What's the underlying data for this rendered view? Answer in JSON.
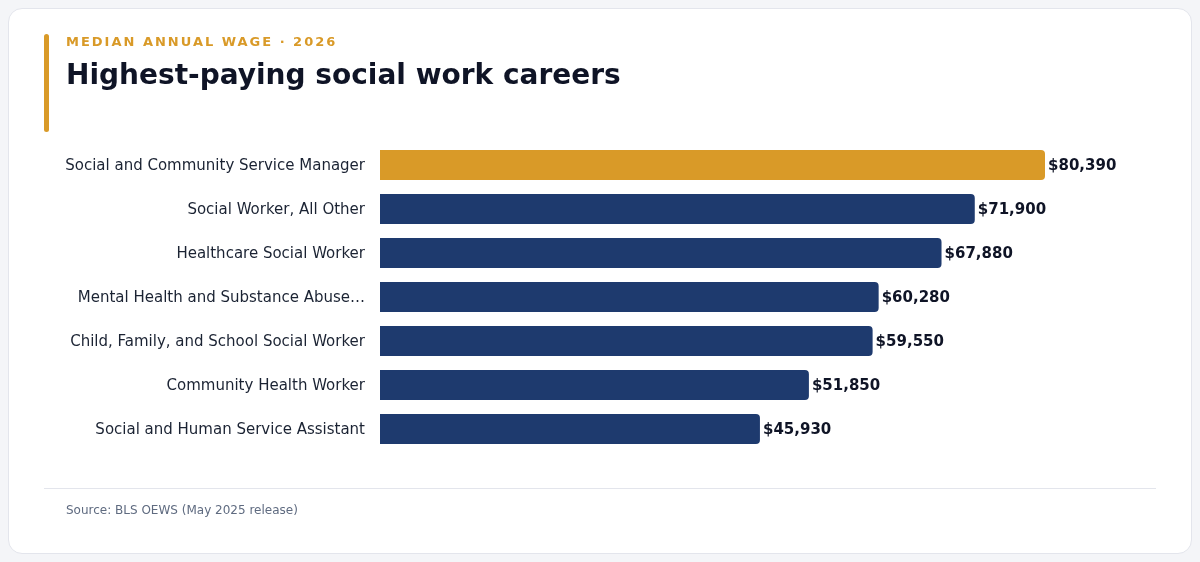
{
  "chart_data": {
    "type": "bar",
    "orientation": "horizontal",
    "title": "Highest-paying social work careers",
    "subtitle": "MEDIAN ANNUAL WAGE · 2026",
    "categories": [
      "Social and Community Service Manager",
      "Social Worker, All Other",
      "Healthcare Social Worker",
      "Mental Health and Substance Abuse…",
      "Child, Family, and School Social Worker",
      "Community Health Worker",
      "Social and Human Service Assistant"
    ],
    "values": [
      80390,
      71900,
      67880,
      60280,
      59550,
      51850,
      45930
    ],
    "value_labels": [
      "$80,390",
      "$71,900",
      "$67,880",
      "$60,280",
      "$59,550",
      "$51,850",
      "$45,930"
    ],
    "colors": [
      "#d99a28",
      "#1e3a6e",
      "#1e3a6e",
      "#1e3a6e",
      "#1e3a6e",
      "#1e3a6e",
      "#1e3a6e"
    ],
    "annotations": [
      "Source: BLS OEWS (May 2025 release)"
    ]
  }
}
